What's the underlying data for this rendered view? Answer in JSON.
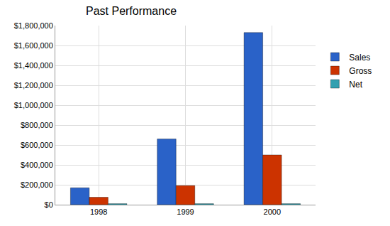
{
  "chart_data": {
    "type": "bar",
    "title": "Past Performance",
    "categories": [
      "1998",
      "1999",
      "2000"
    ],
    "series": [
      {
        "name": "Sales",
        "color": "#2a62c8",
        "values": [
          170000,
          660000,
          1730000
        ]
      },
      {
        "name": "Gross",
        "color": "#cc3300",
        "values": [
          75000,
          192000,
          500000
        ]
      },
      {
        "name": "Net",
        "color": "#33a0b0",
        "values": [
          10000,
          10000,
          10000
        ]
      }
    ],
    "ylim": [
      0,
      1800000
    ],
    "yticks": [
      {
        "value": 0,
        "label": "$0"
      },
      {
        "value": 200000,
        "label": "$200,000"
      },
      {
        "value": 400000,
        "label": "$400,000"
      },
      {
        "value": 600000,
        "label": "$600,000"
      },
      {
        "value": 800000,
        "label": "$800,000"
      },
      {
        "value": 1000000,
        "label": "$1,000,000"
      },
      {
        "value": 1200000,
        "label": "$1,200,000"
      },
      {
        "value": 1400000,
        "label": "$1,400,000"
      },
      {
        "value": 1600000,
        "label": "$1,600,000"
      },
      {
        "value": 1800000,
        "label": "$1,800,000"
      }
    ],
    "grid": true,
    "legend": "right"
  }
}
